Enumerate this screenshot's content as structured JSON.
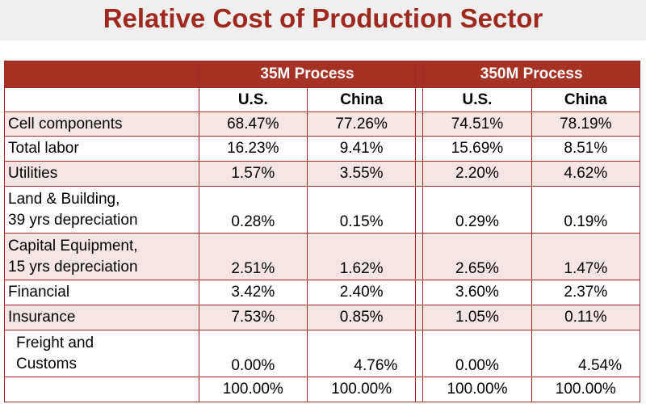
{
  "slide": {
    "title": "Relative Cost of Production Sector"
  },
  "table": {
    "groups": [
      "35M Process",
      "350M Process"
    ],
    "subheaders": [
      "U.S.",
      "China",
      "U.S.",
      "China"
    ],
    "rows": [
      {
        "label": [
          "Cell components"
        ],
        "values": [
          "68.47%",
          "77.26%",
          "74.51%",
          "78.19%"
        ]
      },
      {
        "label": [
          "Total labor"
        ],
        "values": [
          "16.23%",
          "9.41%",
          "15.69%",
          "8.51%"
        ]
      },
      {
        "label": [
          "Utilities"
        ],
        "values": [
          "1.57%",
          "3.55%",
          "2.20%",
          "4.62%"
        ]
      },
      {
        "label": [
          "Land & Building,",
          "39 yrs depreciation"
        ],
        "values": [
          "0.28%",
          "0.15%",
          "0.29%",
          "0.19%"
        ]
      },
      {
        "label": [
          "Capital Equipment,",
          "15 yrs depreciation"
        ],
        "values": [
          "2.51%",
          "1.62%",
          "2.65%",
          "1.47%"
        ]
      },
      {
        "label": [
          "Financial"
        ],
        "values": [
          "3.42%",
          "2.40%",
          "3.60%",
          "2.37%"
        ]
      },
      {
        "label": [
          "Insurance"
        ],
        "values": [
          "7.53%",
          "0.85%",
          "1.05%",
          "0.11%"
        ]
      },
      {
        "label": [
          "Freight and",
          "Customs"
        ],
        "values": [
          "0.00%",
          "4.76%",
          "0.00%",
          "4.54%"
        ]
      }
    ],
    "totals": [
      "100.00%",
      "100.00%",
      "100.00%",
      "100.00%"
    ]
  }
}
